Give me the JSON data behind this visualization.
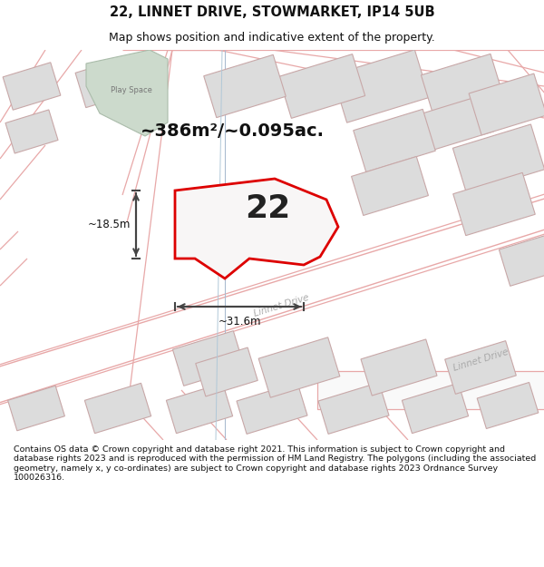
{
  "title": "22, LINNET DRIVE, STOWMARKET, IP14 5UB",
  "subtitle": "Map shows position and indicative extent of the property.",
  "area_label": "~386m²/~0.095ac.",
  "property_number": "22",
  "width_label": "~31.6m",
  "height_label": "~18.5m",
  "road_label": "Linnet Drive",
  "road_label2": "Linnet Drive",
  "footer": "Contains OS data © Crown copyright and database right 2021. This information is subject to Crown copyright and database rights 2023 and is reproduced with the permission of HM Land Registry. The polygons (including the associated geometry, namely x, y co-ordinates) are subject to Crown copyright and database rights 2023 Ordnance Survey 100026316.",
  "map_bg": "#f7f6f6",
  "title_color": "#000000",
  "property_outline_color": "#dd0000",
  "building_color": "#dcdcdc",
  "building_edge": "#c8a8a8",
  "road_line_color": "#e8a8a8",
  "green_area_color": "#ccdacc",
  "blue_line_color": "#aabbd0",
  "arrow_color": "#444444",
  "label_color": "#aaaaaa",
  "footer_fontsize": 6.8,
  "title_fontsize": 10.5,
  "subtitle_fontsize": 9.0
}
